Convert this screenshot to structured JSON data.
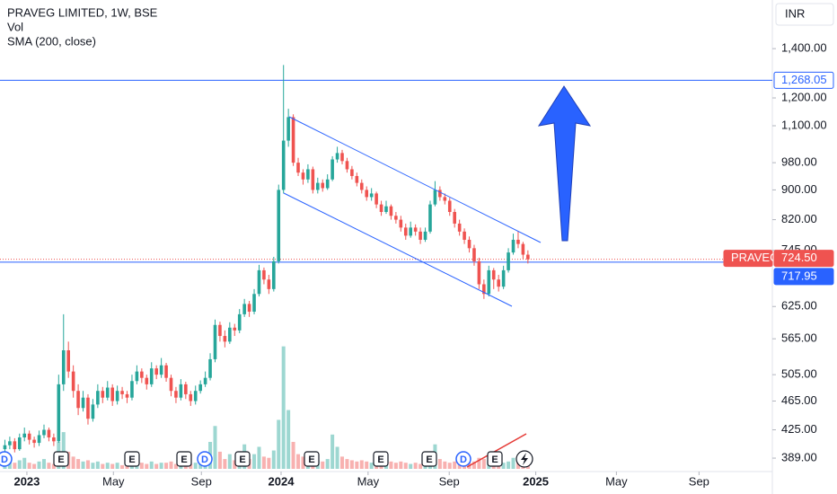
{
  "chart_data": {
    "type": "candlestick",
    "title": "PRAVEG LIMITED, 1W, BSE",
    "legend_items": [
      "Vol",
      "SMA (200, close)"
    ],
    "currency": "INR",
    "log_scale": true,
    "up_color": "#26a69a",
    "down_color": "#ef5350",
    "ylim": [
      373,
      1630
    ],
    "yticks": [
      {
        "value": 389,
        "label": "389.00"
      },
      {
        "value": 425,
        "label": "425.00"
      },
      {
        "value": 465,
        "label": "465.00"
      },
      {
        "value": 505,
        "label": "505.00"
      },
      {
        "value": 565,
        "label": "565.00"
      },
      {
        "value": 625,
        "label": "625.00"
      },
      {
        "value": 745,
        "label": "745.00"
      },
      {
        "value": 820,
        "label": "820.00"
      },
      {
        "value": 900,
        "label": "900.00"
      },
      {
        "value": 980,
        "label": "980.00"
      },
      {
        "value": 1100,
        "label": "1,100.00"
      },
      {
        "value": 1200,
        "label": "1,200.00"
      },
      {
        "value": 1400,
        "label": "1,400.00"
      }
    ],
    "xlim": [
      -1,
      157
    ],
    "xticks": [
      {
        "value": 4.5,
        "label": "2023"
      },
      {
        "value": 22.2,
        "label": "May"
      },
      {
        "value": 40.2,
        "label": "Sep"
      },
      {
        "value": 56.5,
        "label": "2024"
      },
      {
        "value": 74.3,
        "label": "May"
      },
      {
        "value": 90.9,
        "label": "Sep"
      },
      {
        "value": 108.6,
        "label": "2025"
      },
      {
        "value": 125.1,
        "label": "May"
      },
      {
        "value": 142.0,
        "label": "Sep"
      }
    ],
    "price_lines": [
      {
        "value": 1268.05,
        "label": "1,268.05",
        "color": "#2962ff"
      },
      {
        "value": 717.95,
        "label": "717.95",
        "color": "#2962ff"
      }
    ],
    "last_price": {
      "name": "PRAVEG",
      "value": 724.5,
      "label": "724.50",
      "color": "#ef5350"
    },
    "events": [
      "D",
      "E",
      "E",
      "E",
      "D",
      "E",
      "E",
      "E",
      "E",
      "D",
      "E"
    ],
    "ohlc": [
      [
        400,
        412,
        395,
        405
      ],
      [
        405,
        416,
        400,
        410
      ],
      [
        410,
        414,
        396,
        400
      ],
      [
        400,
        420,
        398,
        415
      ],
      [
        415,
        428,
        410,
        420
      ],
      [
        420,
        424,
        406,
        412
      ],
      [
        412,
        416,
        402,
        408
      ],
      [
        408,
        424,
        404,
        418
      ],
      [
        418,
        432,
        414,
        425
      ],
      [
        425,
        428,
        410,
        415
      ],
      [
        415,
        420,
        404,
        410
      ],
      [
        410,
        505,
        408,
        490
      ],
      [
        490,
        610,
        480,
        545
      ],
      [
        545,
        560,
        500,
        510
      ],
      [
        510,
        520,
        470,
        480
      ],
      [
        480,
        490,
        445,
        455
      ],
      [
        455,
        480,
        450,
        470
      ],
      [
        470,
        475,
        432,
        440
      ],
      [
        440,
        468,
        436,
        460
      ],
      [
        460,
        490,
        455,
        480
      ],
      [
        480,
        486,
        462,
        470
      ],
      [
        470,
        495,
        466,
        485
      ],
      [
        485,
        490,
        458,
        465
      ],
      [
        465,
        488,
        460,
        480
      ],
      [
        480,
        486,
        468,
        475
      ],
      [
        475,
        480,
        462,
        470
      ],
      [
        470,
        505,
        466,
        495
      ],
      [
        495,
        520,
        490,
        510
      ],
      [
        510,
        515,
        492,
        500
      ],
      [
        500,
        505,
        482,
        490
      ],
      [
        490,
        525,
        486,
        515
      ],
      [
        515,
        520,
        498,
        505
      ],
      [
        505,
        532,
        500,
        520
      ],
      [
        520,
        524,
        494,
        500
      ],
      [
        500,
        505,
        472,
        480
      ],
      [
        480,
        486,
        462,
        470
      ],
      [
        470,
        498,
        466,
        490
      ],
      [
        490,
        494,
        468,
        475
      ],
      [
        475,
        480,
        458,
        465
      ],
      [
        465,
        488,
        460,
        480
      ],
      [
        480,
        496,
        476,
        490
      ],
      [
        490,
        510,
        486,
        500
      ],
      [
        500,
        540,
        496,
        530
      ],
      [
        530,
        600,
        525,
        590
      ],
      [
        590,
        596,
        560,
        570
      ],
      [
        570,
        580,
        550,
        560
      ],
      [
        560,
        595,
        556,
        585
      ],
      [
        585,
        592,
        570,
        580
      ],
      [
        580,
        620,
        575,
        610
      ],
      [
        610,
        640,
        605,
        630
      ],
      [
        630,
        636,
        605,
        615
      ],
      [
        615,
        660,
        610,
        650
      ],
      [
        650,
        712,
        645,
        700
      ],
      [
        700,
        706,
        670,
        680
      ],
      [
        680,
        690,
        650,
        660
      ],
      [
        660,
        730,
        655,
        720
      ],
      [
        720,
        915,
        715,
        900
      ],
      [
        900,
        1330,
        890,
        1050
      ],
      [
        1050,
        1160,
        1030,
        1130
      ],
      [
        1130,
        1140,
        970,
        980
      ],
      [
        980,
        995,
        940,
        950
      ],
      [
        950,
        960,
        915,
        930
      ],
      [
        930,
        975,
        920,
        960
      ],
      [
        960,
        968,
        890,
        900
      ],
      [
        900,
        935,
        890,
        920
      ],
      [
        920,
        930,
        895,
        905
      ],
      [
        905,
        945,
        900,
        930
      ],
      [
        930,
        1000,
        925,
        990
      ],
      [
        990,
        1030,
        980,
        1010
      ],
      [
        1010,
        1020,
        975,
        985
      ],
      [
        985,
        995,
        950,
        960
      ],
      [
        960,
        970,
        930,
        940
      ],
      [
        940,
        950,
        910,
        920
      ],
      [
        920,
        930,
        890,
        900
      ],
      [
        900,
        910,
        870,
        880
      ],
      [
        880,
        905,
        870,
        890
      ],
      [
        890,
        895,
        850,
        860
      ],
      [
        860,
        870,
        830,
        840
      ],
      [
        840,
        870,
        835,
        855
      ],
      [
        855,
        860,
        820,
        830
      ],
      [
        830,
        840,
        810,
        820
      ],
      [
        820,
        830,
        790,
        800
      ],
      [
        800,
        810,
        770,
        780
      ],
      [
        780,
        815,
        775,
        800
      ],
      [
        800,
        808,
        780,
        790
      ],
      [
        790,
        800,
        760,
        770
      ],
      [
        770,
        800,
        765,
        790
      ],
      [
        790,
        870,
        785,
        860
      ],
      [
        860,
        925,
        855,
        900
      ],
      [
        900,
        910,
        870,
        880
      ],
      [
        880,
        890,
        860,
        870
      ],
      [
        870,
        878,
        830,
        840
      ],
      [
        840,
        848,
        800,
        810
      ],
      [
        810,
        820,
        780,
        790
      ],
      [
        790,
        798,
        760,
        770
      ],
      [
        770,
        778,
        740,
        750
      ],
      [
        750,
        758,
        710,
        720
      ],
      [
        720,
        728,
        660,
        670
      ],
      [
        670,
        680,
        640,
        650
      ],
      [
        650,
        710,
        645,
        700
      ],
      [
        700,
        705,
        660,
        680
      ],
      [
        680,
        690,
        655,
        665
      ],
      [
        665,
        710,
        660,
        700
      ],
      [
        700,
        750,
        695,
        740
      ],
      [
        740,
        785,
        735,
        770
      ],
      [
        770,
        790,
        750,
        760
      ],
      [
        760,
        765,
        725,
        735
      ],
      [
        735,
        745,
        715,
        724.5
      ]
    ],
    "vlim": [
      0,
      110
    ],
    "volume": [
      8,
      6,
      5,
      7,
      9,
      5,
      4,
      6,
      8,
      5,
      4,
      22,
      30,
      14,
      10,
      8,
      6,
      7,
      5,
      6,
      4,
      5,
      4,
      5,
      3,
      4,
      6,
      8,
      5,
      4,
      6,
      4,
      5,
      5,
      6,
      4,
      5,
      4,
      4,
      5,
      6,
      9,
      22,
      35,
      14,
      8,
      12,
      7,
      10,
      20,
      8,
      12,
      18,
      10,
      9,
      15,
      40,
      100,
      48,
      22,
      12,
      10,
      8,
      9,
      7,
      6,
      8,
      28,
      18,
      10,
      8,
      7,
      6,
      7,
      6,
      5,
      6,
      5,
      5,
      6,
      5,
      6,
      5,
      4,
      5,
      4,
      5,
      14,
      20,
      8,
      6,
      5,
      6,
      5,
      4,
      5,
      6,
      9,
      8,
      7,
      5,
      4,
      5,
      6,
      9,
      7,
      5,
      3
    ]
  }
}
